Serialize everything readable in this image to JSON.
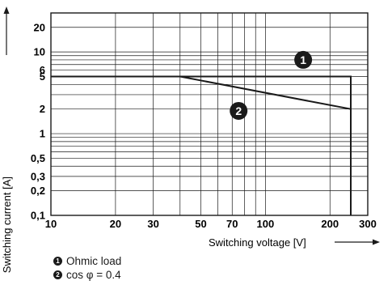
{
  "chart_data": {
    "type": "line",
    "xscale": "log",
    "yscale": "log",
    "xlim": [
      10,
      300
    ],
    "ylim": [
      0.1,
      30
    ],
    "xlabel": "Switching voltage [V]",
    "ylabel": "Switching current [A]",
    "x_ticks": [
      10,
      20,
      30,
      50,
      70,
      100,
      200,
      300
    ],
    "x_tick_labels": [
      "10",
      "20",
      "30",
      "50",
      "70",
      "100",
      "200",
      "300"
    ],
    "y_ticks": [
      0.1,
      0.2,
      0.3,
      0.5,
      1,
      2,
      5,
      6,
      10,
      20
    ],
    "y_tick_labels": [
      "0,1",
      "0,2",
      "0,3",
      "0,5",
      "1",
      "2",
      "5",
      "6",
      "10",
      "20"
    ],
    "grid": true,
    "series": [
      {
        "marker": "1",
        "color": "#1a1a1a",
        "x": [
          10,
          40,
          250,
          250
        ],
        "y": [
          5,
          5,
          5,
          0.1
        ]
      },
      {
        "marker": "2",
        "color": "#1a1a1a",
        "x": [
          40,
          250,
          250
        ],
        "y": [
          5,
          2,
          0.1
        ]
      }
    ],
    "annotations": [
      {
        "label": "1",
        "x": 150,
        "y": 8
      },
      {
        "label": "2",
        "x": 75,
        "y": 1.9
      }
    ],
    "legend": [
      {
        "marker": "1",
        "text": "Ohmic load"
      },
      {
        "marker": "2",
        "text": "cos φ = 0.4"
      }
    ]
  }
}
